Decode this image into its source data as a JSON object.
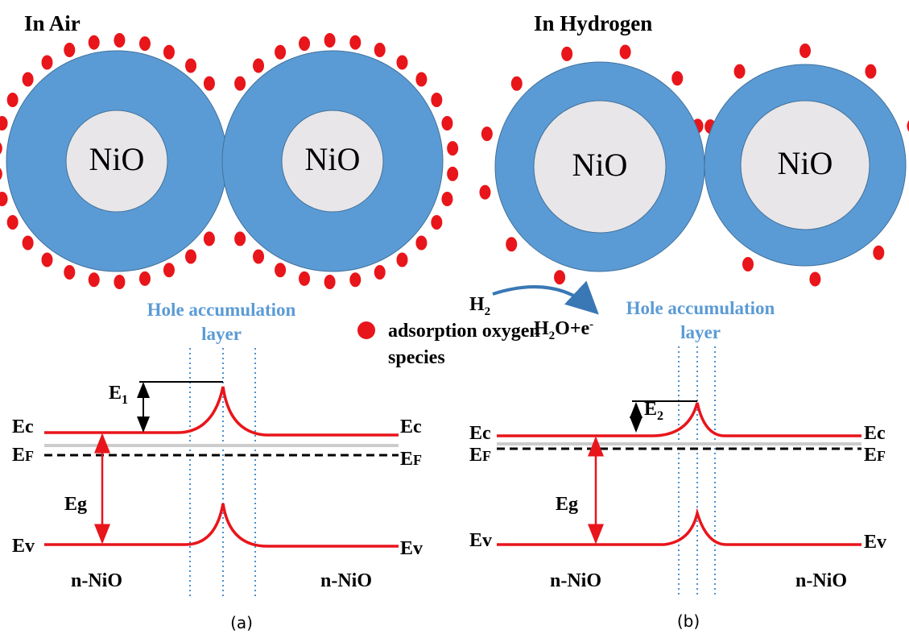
{
  "panels": [
    {
      "title": "In Air",
      "particles": [
        {
          "label": "NiO"
        },
        {
          "label": "NiO"
        }
      ],
      "layer_label": [
        "Hole accumulation",
        "layer"
      ],
      "band": {
        "ec_left": "Ec",
        "ec_right": "Ec",
        "ef_left": [
          "E",
          "F"
        ],
        "ef_right": [
          "E",
          "F"
        ],
        "eg": "Eg",
        "ev_left": "Ev",
        "ev_right": "Ev",
        "barrier": [
          "E",
          "1"
        ],
        "region_left": "n-NiO",
        "region_right": "n-NiO"
      },
      "caption": "(a)"
    },
    {
      "title": "In Hydrogen",
      "particles": [
        {
          "label": "NiO"
        },
        {
          "label": "NiO"
        }
      ],
      "layer_label": [
        "Hole accumulation",
        "layer"
      ],
      "band": {
        "ec_left": "Ec",
        "ec_right": "Ec",
        "ef_left": [
          "E",
          "F"
        ],
        "ef_right": [
          "E",
          "F"
        ],
        "eg": "Eg",
        "ev_left": "Ev",
        "ev_right": "Ev",
        "barrier": [
          "E",
          "2"
        ],
        "region_left": "n-NiO",
        "region_right": "n-NiO"
      },
      "caption": "(b)"
    }
  ],
  "reaction": {
    "reactant": [
      "H",
      "2"
    ],
    "product": [
      "H",
      "2",
      "O+e",
      "-"
    ]
  },
  "legend": {
    "label": [
      "adsorption oxygen",
      "species"
    ]
  }
}
